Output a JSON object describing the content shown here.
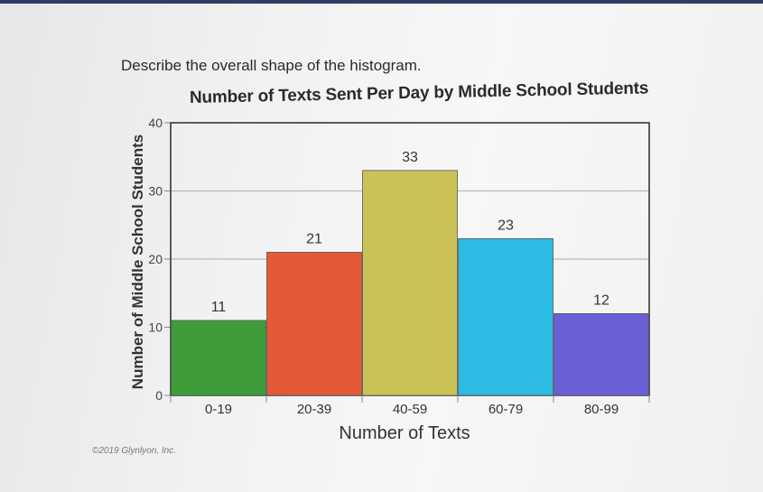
{
  "question": "Describe the overall shape of the histogram.",
  "copyright": "©2019 Glynlyon, Inc.",
  "chart_data": {
    "type": "bar",
    "title": "Number of Texts Sent Per Day by Middle School Students",
    "xlabel": "Number of Texts",
    "ylabel": "Number of Middle School Students",
    "categories": [
      "0-19",
      "20-39",
      "40-59",
      "60-79",
      "80-99"
    ],
    "values": [
      11,
      21,
      33,
      23,
      12
    ],
    "colors": [
      "#3f9c3b",
      "#e45a36",
      "#cbc257",
      "#2bbbe3",
      "#6b5fd6"
    ],
    "yticks": [
      "0",
      "10",
      "20",
      "30",
      "40"
    ],
    "ylim": [
      0,
      40
    ],
    "grid": true
  }
}
